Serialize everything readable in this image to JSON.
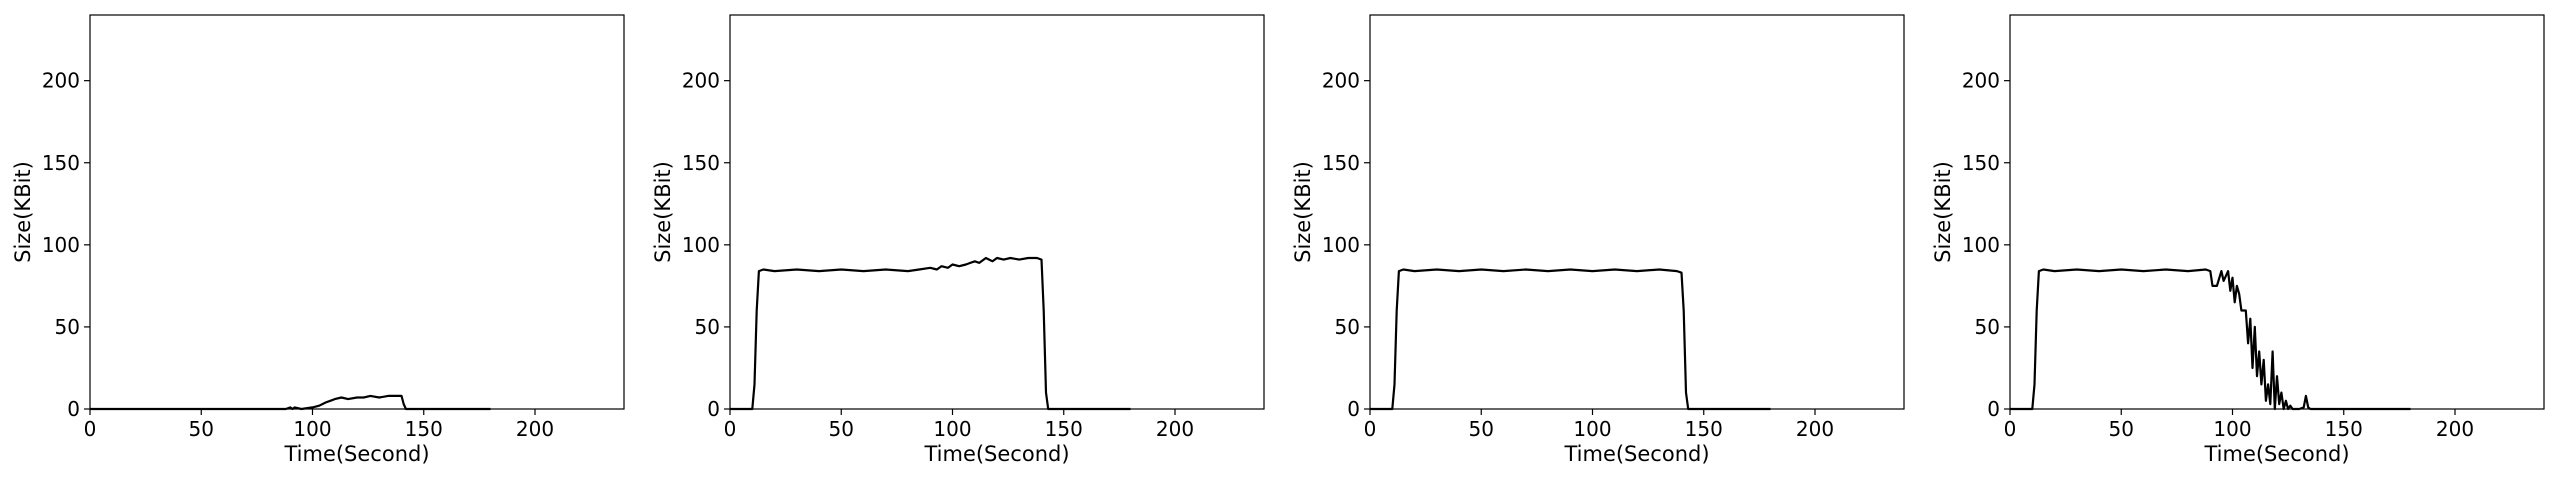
{
  "chart_data": [
    {
      "type": "line",
      "xlabel": "Time(Second)",
      "ylabel": "Size(KBit)",
      "xlim": [
        0,
        240
      ],
      "ylim": [
        0,
        240
      ],
      "xticks": [
        0,
        50,
        100,
        150,
        200
      ],
      "yticks": [
        0,
        50,
        100,
        150,
        200
      ],
      "grid": false,
      "series": [
        {
          "x": [
            0,
            88,
            90,
            91,
            92,
            95,
            100,
            103,
            106,
            108,
            110,
            113,
            116,
            120,
            123,
            126,
            130,
            134,
            138,
            140,
            141,
            142,
            143,
            145,
            160,
            180
          ],
          "y": [
            0,
            0,
            1,
            0,
            1,
            0,
            1,
            2,
            4,
            5,
            6,
            7,
            6,
            7,
            7,
            8,
            7,
            8,
            8,
            8,
            3,
            0,
            0,
            0,
            0,
            0
          ]
        }
      ]
    },
    {
      "type": "line",
      "xlabel": "Time(Second)",
      "ylabel": "Size(KBit)",
      "xlim": [
        0,
        240
      ],
      "ylim": [
        0,
        240
      ],
      "xticks": [
        0,
        50,
        100,
        150,
        200
      ],
      "yticks": [
        0,
        50,
        100,
        150,
        200
      ],
      "grid": false,
      "series": [
        {
          "x": [
            0,
            10,
            11,
            12,
            13,
            15,
            20,
            30,
            40,
            50,
            60,
            70,
            80,
            85,
            90,
            93,
            95,
            98,
            100,
            103,
            106,
            108,
            110,
            112,
            115,
            118,
            120,
            123,
            126,
            130,
            134,
            138,
            140,
            141,
            142,
            143,
            145,
            160,
            180
          ],
          "y": [
            0,
            0,
            15,
            60,
            84,
            85,
            84,
            85,
            84,
            85,
            84,
            85,
            84,
            85,
            86,
            85,
            87,
            86,
            88,
            87,
            88,
            89,
            90,
            89,
            92,
            90,
            92,
            91,
            92,
            91,
            92,
            92,
            91,
            60,
            10,
            0,
            0,
            0,
            0
          ]
        }
      ]
    },
    {
      "type": "line",
      "xlabel": "Time(Second)",
      "ylabel": "Size(KBit)",
      "xlim": [
        0,
        240
      ],
      "ylim": [
        0,
        240
      ],
      "xticks": [
        0,
        50,
        100,
        150,
        200
      ],
      "yticks": [
        0,
        50,
        100,
        150,
        200
      ],
      "grid": false,
      "series": [
        {
          "x": [
            0,
            10,
            11,
            12,
            13,
            15,
            20,
            30,
            40,
            50,
            60,
            70,
            80,
            90,
            100,
            110,
            120,
            130,
            138,
            140,
            141,
            142,
            143,
            145,
            160,
            180
          ],
          "y": [
            0,
            0,
            15,
            60,
            84,
            85,
            84,
            85,
            84,
            85,
            84,
            85,
            84,
            85,
            84,
            85,
            84,
            85,
            84,
            83,
            60,
            10,
            0,
            0,
            0,
            0
          ]
        }
      ]
    },
    {
      "type": "line",
      "xlabel": "Time(Second)",
      "ylabel": "Size(KBit)",
      "xlim": [
        0,
        240
      ],
      "ylim": [
        0,
        240
      ],
      "xticks": [
        0,
        50,
        100,
        150,
        200
      ],
      "yticks": [
        0,
        50,
        100,
        150,
        200
      ],
      "grid": false,
      "series": [
        {
          "x": [
            0,
            10,
            11,
            12,
            13,
            15,
            20,
            30,
            40,
            50,
            60,
            70,
            80,
            88,
            90,
            91,
            93,
            95,
            96,
            98,
            99,
            100,
            101,
            102,
            103,
            104,
            105,
            106,
            107,
            108,
            109,
            110,
            111,
            112,
            113,
            114,
            115,
            116,
            117,
            118,
            119,
            120,
            121,
            122,
            123,
            124,
            125,
            126,
            127,
            128,
            130,
            132,
            133,
            134,
            135,
            137,
            150,
            180
          ],
          "y": [
            0,
            0,
            15,
            60,
            84,
            85,
            84,
            85,
            84,
            85,
            84,
            85,
            84,
            85,
            84,
            75,
            75,
            84,
            78,
            84,
            72,
            80,
            65,
            75,
            70,
            60,
            60,
            60,
            40,
            55,
            25,
            50,
            20,
            35,
            15,
            30,
            5,
            15,
            3,
            35,
            0,
            20,
            3,
            10,
            0,
            5,
            0,
            2,
            0,
            0,
            0,
            1,
            8,
            1,
            0,
            0,
            0,
            0
          ]
        }
      ]
    }
  ]
}
